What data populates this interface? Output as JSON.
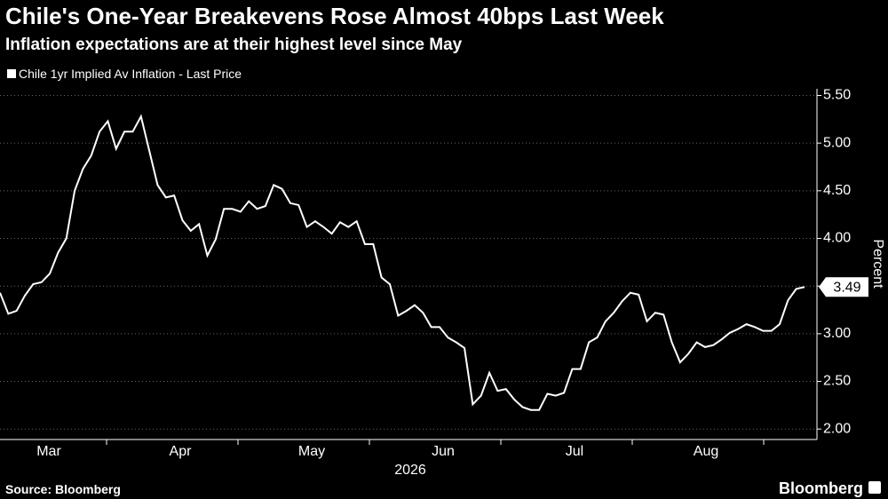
{
  "chart_data": {
    "type": "line",
    "title": "Chile's One-Year Breakevens Rose Almost 40bps Last Week",
    "subtitle": "Inflation expectations are at their highest level since May",
    "ylabel": "Percent",
    "xlabel": "2026",
    "categories_months": [
      "Mar",
      "Apr",
      "May",
      "Jun",
      "Jul",
      "Aug"
    ],
    "series": [
      {
        "name": "Chile 1yr Implied Av Inflation - Last Price",
        "color": "#ffffff",
        "values": [
          3.43,
          3.21,
          3.24,
          3.4,
          3.52,
          3.54,
          3.63,
          3.85,
          4.0,
          4.5,
          4.73,
          4.87,
          5.12,
          5.23,
          4.94,
          5.12,
          5.12,
          5.28,
          4.92,
          4.56,
          4.43,
          4.45,
          4.19,
          4.08,
          4.15,
          3.82,
          3.99,
          4.31,
          4.31,
          4.28,
          4.39,
          4.31,
          4.34,
          4.56,
          4.52,
          4.37,
          4.35,
          4.12,
          4.18,
          4.12,
          4.05,
          4.17,
          4.12,
          4.18,
          3.94,
          3.94,
          3.59,
          3.52,
          3.19,
          3.24,
          3.3,
          3.22,
          3.07,
          3.07,
          2.96,
          2.91,
          2.85,
          2.26,
          2.35,
          2.59,
          2.4,
          2.42,
          2.31,
          2.23,
          2.2,
          2.2,
          2.37,
          2.35,
          2.38,
          2.63,
          2.63,
          2.91,
          2.96,
          3.13,
          3.22,
          3.34,
          3.43,
          3.41,
          3.13,
          3.22,
          3.2,
          2.91,
          2.7,
          2.79,
          2.91,
          2.86,
          2.88,
          2.94,
          3.01,
          3.05,
          3.1,
          3.07,
          3.03,
          3.03,
          3.1,
          3.35,
          3.47,
          3.49
        ]
      }
    ],
    "ylim": [
      1.89,
      5.57
    ],
    "yticks": [
      {
        "value": 2,
        "label": "2.00"
      },
      {
        "value": 2.5,
        "label": "2.50"
      },
      {
        "value": 3,
        "label": "3.00"
      },
      {
        "value": 3.5,
        "label": "3.50"
      },
      {
        "value": 4,
        "label": "4.00"
      },
      {
        "value": 4.5,
        "label": "4.50"
      },
      {
        "value": 5,
        "label": "5.00"
      },
      {
        "value": 5.5,
        "label": "5.50"
      }
    ],
    "grid": true,
    "source": "Source: Bloomberg",
    "brand": "Bloomberg"
  }
}
